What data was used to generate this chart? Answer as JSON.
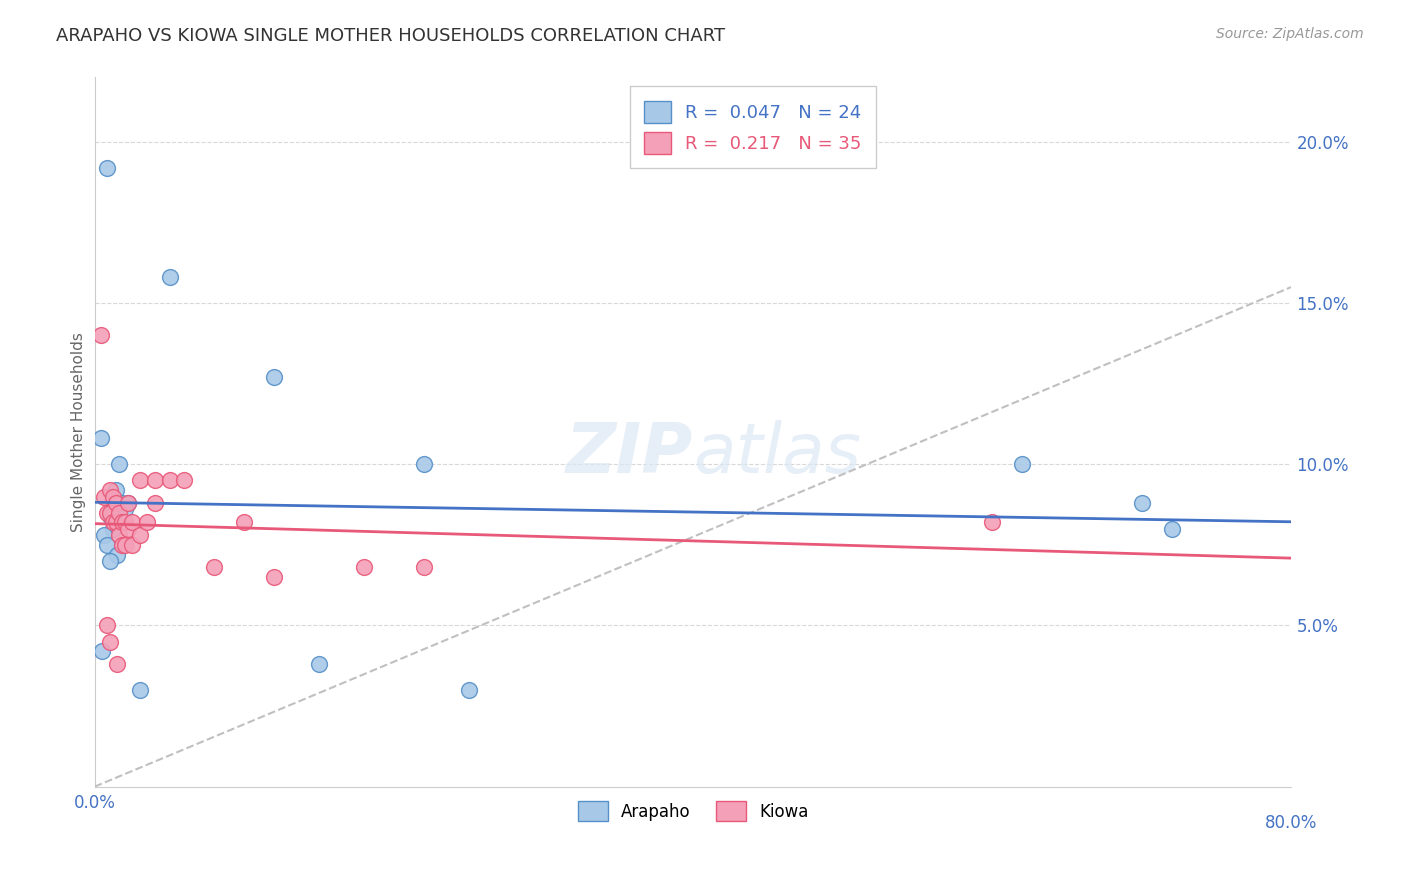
{
  "title": "ARAPAHO VS KIOWA SINGLE MOTHER HOUSEHOLDS CORRELATION CHART",
  "source": "Source: ZipAtlas.com",
  "ylabel": "Single Mother Households",
  "xlim": [
    0,
    0.8
  ],
  "ylim": [
    0,
    0.22
  ],
  "arapaho_R": 0.047,
  "arapaho_N": 24,
  "kiowa_R": 0.217,
  "kiowa_N": 35,
  "arapaho_color": "#a8c8e8",
  "kiowa_color": "#f4a0b8",
  "arapaho_edge_color": "#5590c8",
  "kiowa_edge_color": "#e85878",
  "arapaho_line_color": "#4472c4",
  "kiowa_line_color": "#e85878",
  "trendline_dashed_color": "#c0c0c0",
  "background_color": "#ffffff",
  "grid_color": "#d8d8d8",
  "tick_color": "#4472c4",
  "arapaho_x": [
    0.008,
    0.004,
    0.016,
    0.014,
    0.012,
    0.018,
    0.022,
    0.02,
    0.01,
    0.012,
    0.006,
    0.008,
    0.015,
    0.01,
    0.05,
    0.12,
    0.22,
    0.62,
    0.7,
    0.72,
    0.005,
    0.15,
    0.25,
    0.03
  ],
  "arapaho_y": [
    0.192,
    0.108,
    0.1,
    0.092,
    0.088,
    0.088,
    0.088,
    0.086,
    0.084,
    0.08,
    0.078,
    0.075,
    0.072,
    0.07,
    0.158,
    0.127,
    0.1,
    0.1,
    0.088,
    0.08,
    0.042,
    0.038,
    0.03,
    0.03
  ],
  "kiowa_x": [
    0.004,
    0.006,
    0.008,
    0.01,
    0.01,
    0.012,
    0.012,
    0.014,
    0.014,
    0.016,
    0.016,
    0.018,
    0.018,
    0.02,
    0.02,
    0.022,
    0.022,
    0.025,
    0.025,
    0.03,
    0.03,
    0.035,
    0.04,
    0.04,
    0.05,
    0.06,
    0.08,
    0.1,
    0.12,
    0.18,
    0.22,
    0.6,
    0.008,
    0.01,
    0.015
  ],
  "kiowa_y": [
    0.14,
    0.09,
    0.085,
    0.092,
    0.085,
    0.09,
    0.082,
    0.088,
    0.082,
    0.085,
    0.078,
    0.082,
    0.075,
    0.082,
    0.075,
    0.088,
    0.08,
    0.082,
    0.075,
    0.095,
    0.078,
    0.082,
    0.095,
    0.088,
    0.095,
    0.095,
    0.068,
    0.082,
    0.065,
    0.068,
    0.068,
    0.082,
    0.05,
    0.045,
    0.038
  ],
  "xtick_vals": [
    0.0,
    0.8
  ],
  "xtick_labels": [
    "0.0%",
    "80.0%"
  ],
  "ytick_vals": [
    0.05,
    0.1,
    0.15,
    0.2
  ],
  "ytick_labels": [
    "5.0%",
    "10.0%",
    "15.0%",
    "20.0%"
  ]
}
